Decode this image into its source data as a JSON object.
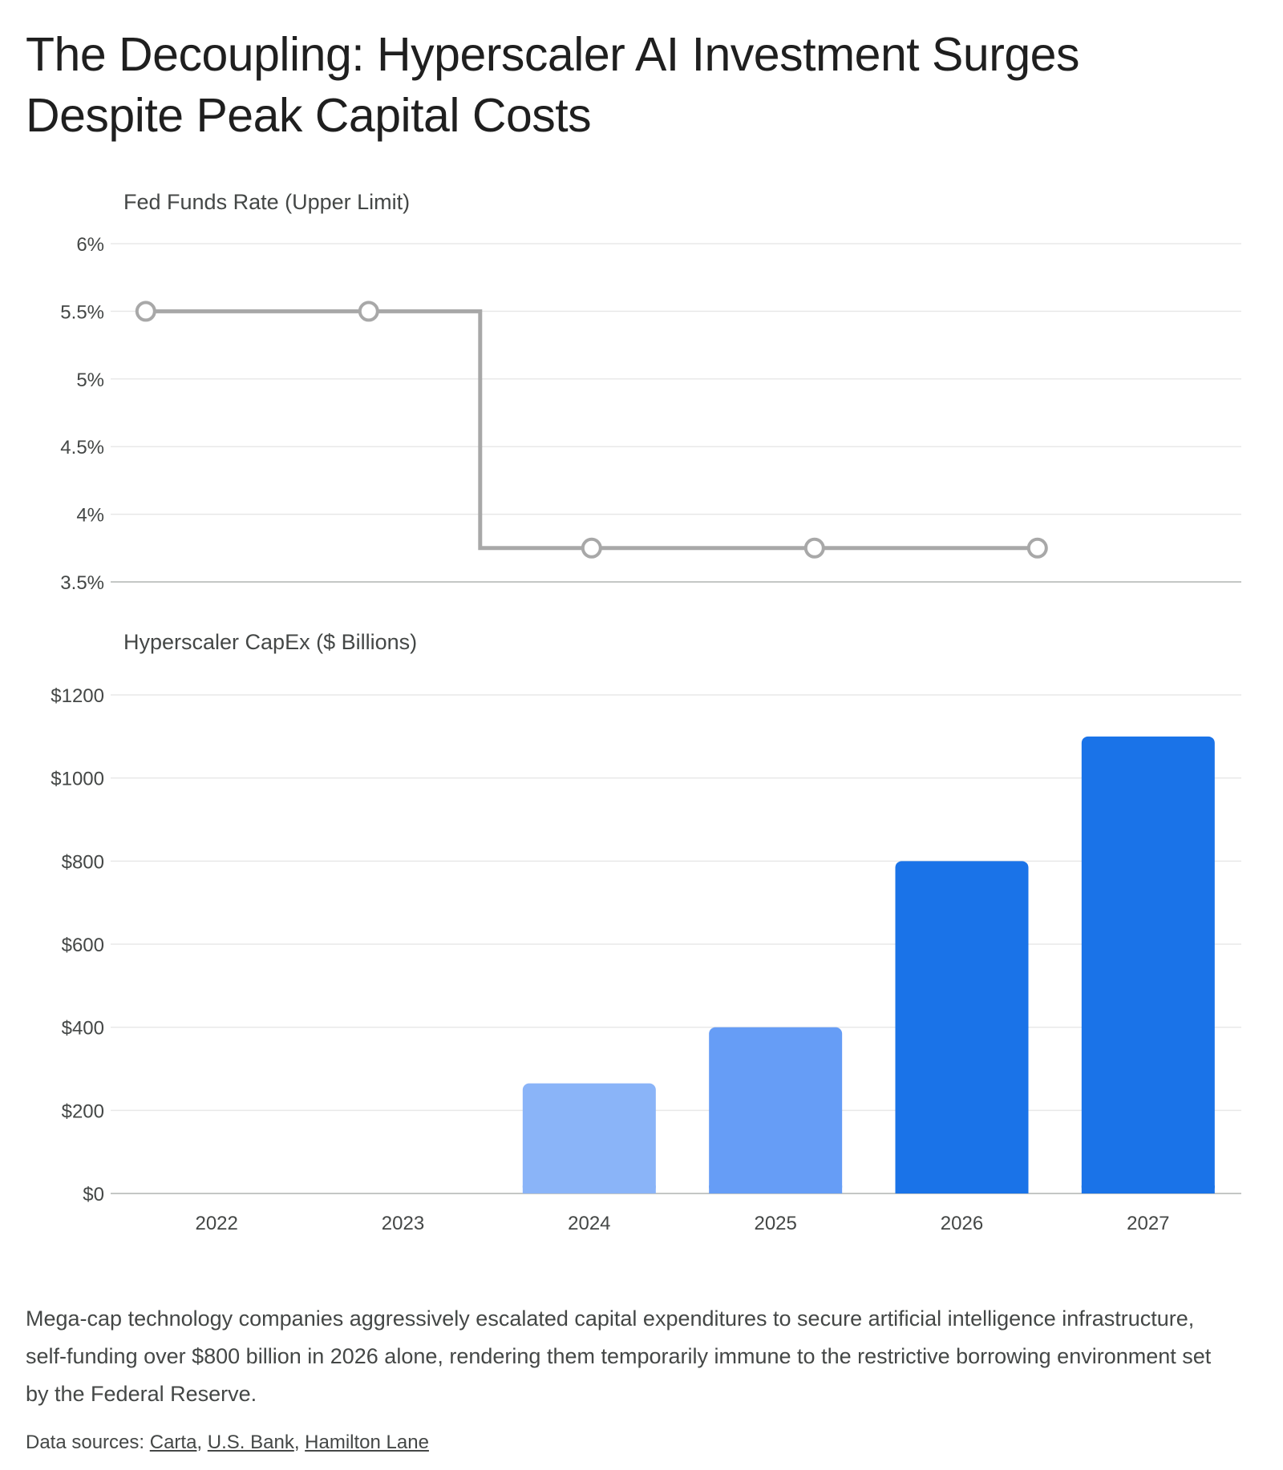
{
  "title": "The Decoupling: Hyperscaler AI Investment Surges Despite Peak Capital Costs",
  "description": "Mega-cap technology companies aggressively escalated capital expenditures to secure artificial intelligence infrastructure, self-funding over $800 billion in 2026 alone, rendering them temporarily immune to the restrictive borrowing environment set by the Federal Reserve.",
  "sources": {
    "label": "Data sources: ",
    "links": [
      "Carta",
      "U.S. Bank",
      "Hamilton Lane"
    ]
  },
  "chart_data": [
    {
      "type": "line",
      "subtitle": "Fed Funds Rate (Upper Limit)",
      "x": [
        "2022",
        "2023",
        "2024",
        "2025",
        "2026",
        "2027"
      ],
      "series": [
        {
          "values": [
            null,
            5.5,
            5.5,
            3.75,
            3.75,
            3.75
          ],
          "color": "#a8a8a8"
        }
      ],
      "step": "after",
      "ylim": [
        3.5,
        6
      ],
      "yticks": [
        3.5,
        4,
        4.5,
        5,
        5.5,
        6
      ],
      "ytick_labels": [
        "3.5%",
        "4%",
        "4.5%",
        "5%",
        "5.5%",
        "6%"
      ],
      "grid": true
    },
    {
      "type": "bar",
      "subtitle": "Hyperscaler CapEx ($ Billions)",
      "categories": [
        "2022",
        "2023",
        "2024",
        "2025",
        "2026",
        "2027"
      ],
      "values": [
        0,
        0,
        265,
        400,
        800,
        1100
      ],
      "colors": [
        "#8ab4f8",
        "#8ab4f8",
        "#8ab4f8",
        "#669df6",
        "#1a73e8",
        "#1a73e8"
      ],
      "ylim": [
        0,
        1200
      ],
      "yticks": [
        0,
        200,
        400,
        600,
        800,
        1000,
        1200
      ],
      "ytick_labels": [
        "$0",
        "$200",
        "$400",
        "$600",
        "$800",
        "$1000",
        "$1200"
      ],
      "grid": true
    }
  ]
}
